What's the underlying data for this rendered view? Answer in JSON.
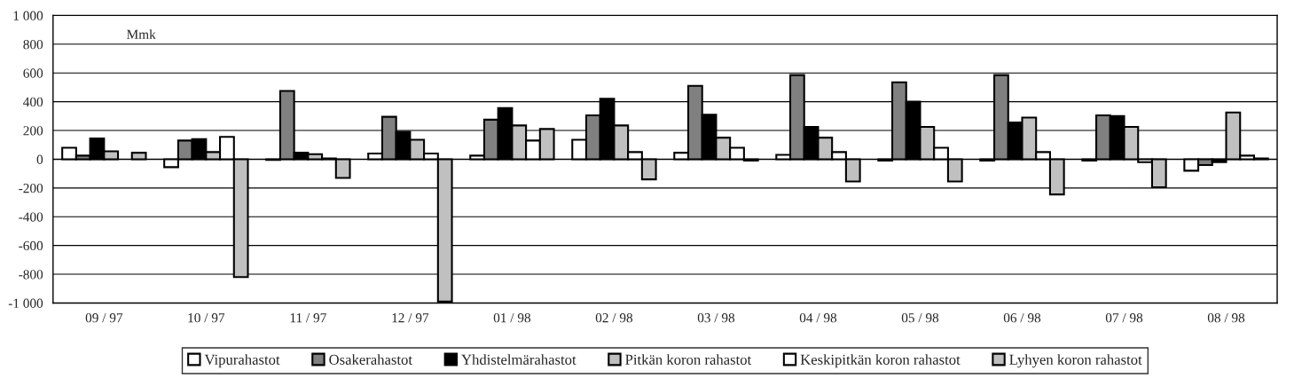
{
  "chart_data": {
    "type": "bar",
    "categories": [
      "09 / 97",
      "10 / 97",
      "11 / 97",
      "12 / 97",
      "01 / 98",
      "02 / 98",
      "03 / 98",
      "04 / 98",
      "05 / 98",
      "06 / 98",
      "07 / 98",
      "08 / 98"
    ],
    "series": [
      {
        "name": "Vipurahastot",
        "color": "#ffffff",
        "values": [
          80,
          -55,
          -5,
          40,
          25,
          135,
          45,
          30,
          -10,
          -10,
          -10,
          -80
        ]
      },
      {
        "name": "Osakerahastot",
        "color": "#808080",
        "values": [
          25,
          130,
          475,
          295,
          275,
          305,
          510,
          585,
          535,
          585,
          305,
          -40
        ]
      },
      {
        "name": "Yhdistelmärahastot",
        "color": "#000000",
        "values": [
          145,
          140,
          45,
          190,
          355,
          420,
          310,
          225,
          400,
          255,
          300,
          -20
        ]
      },
      {
        "name": "Pitkän koron rahastot",
        "color": "#c0c0c0",
        "values": [
          55,
          50,
          35,
          135,
          235,
          235,
          150,
          150,
          225,
          290,
          225,
          325
        ]
      },
      {
        "name": "Keskipitkän koron rahastot",
        "color": "#ffffff",
        "values": [
          null,
          155,
          5,
          40,
          130,
          50,
          80,
          50,
          80,
          50,
          -20,
          25
        ]
      },
      {
        "name": "Lyhyen koron rahastot",
        "color": "#c0c0c0",
        "values": [
          45,
          -820,
          -130,
          -990,
          210,
          -140,
          -10,
          -155,
          -155,
          -245,
          -195,
          5
        ]
      }
    ],
    "ylim": [
      -1000,
      1000
    ],
    "yticks": [
      {
        "value": -1000,
        "label": "-1 000"
      },
      -800,
      -600,
      -400,
      -200,
      0,
      200,
      400,
      600,
      800,
      {
        "value": 1000,
        "label": "1 000"
      }
    ],
    "grid": "y",
    "legend": "bottom",
    "annotations": [
      "Mmk"
    ]
  }
}
